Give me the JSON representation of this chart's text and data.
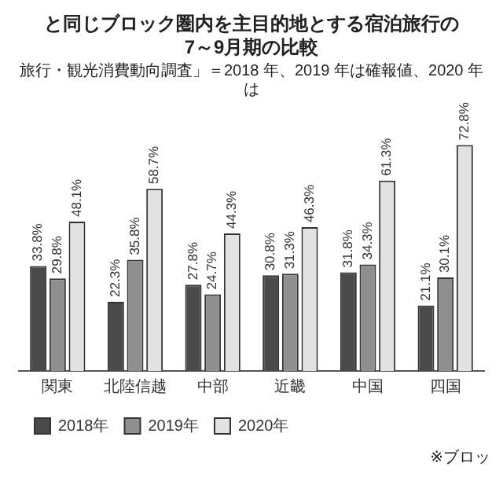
{
  "chart_data": {
    "type": "bar",
    "title": "と同じブロック圏内を主目的地とする宿泊旅行の\n7～9月期の比較",
    "subtitle": "旅行・観光消費動向調査」＝2018 年、2019 年は確報値、2020 年は",
    "annotations": [
      "※ブロッ"
    ],
    "categories": [
      "関東",
      "北陸信越",
      "中部",
      "近畿",
      "中国",
      "四国"
    ],
    "series": [
      {
        "name": "2018年",
        "color": "#4a4a4a",
        "values": [
          33.8,
          22.3,
          27.8,
          30.8,
          31.8,
          21.1
        ],
        "value_labels": [
          "33.8%",
          "22.3%",
          "27.8%",
          "30.8%",
          "31.8%",
          "21.1%"
        ]
      },
      {
        "name": "2019年",
        "color": "#8f8f8f",
        "values": [
          29.8,
          35.8,
          24.7,
          31.3,
          34.3,
          30.1
        ],
        "value_labels": [
          "29.8%",
          "35.8%",
          "24.7%",
          "31.3%",
          "34.3%",
          "30.1%"
        ]
      },
      {
        "name": "2020年",
        "color": "#e2e2e2",
        "values": [
          48.1,
          58.7,
          44.3,
          46.3,
          61.3,
          72.8
        ],
        "value_labels": [
          "48.1%",
          "58.7%",
          "44.3%",
          "46.3%",
          "61.3%",
          "72.8%"
        ]
      }
    ],
    "legend": "bottom",
    "grid": false
  }
}
